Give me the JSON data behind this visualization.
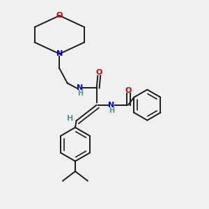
{
  "background_color": "#f0f0f0",
  "bond_color": "#1a1a1a",
  "atom_colors": {
    "N": "#0000cc",
    "O": "#cc0000",
    "C": "#1a1a1a",
    "H": "#4a9a8a"
  },
  "figsize": [
    3.0,
    3.0
  ],
  "dpi": 100
}
